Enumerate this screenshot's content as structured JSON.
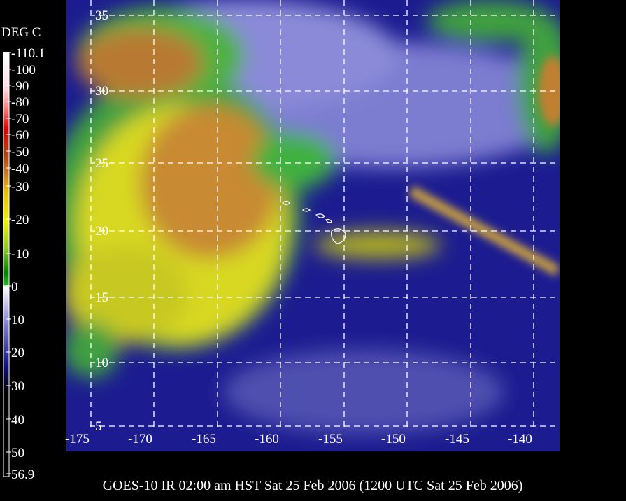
{
  "colorbar": {
    "unit": "DEG C",
    "labels": [
      "-110.1",
      "-100",
      "-90",
      "-80",
      "-70",
      "-60",
      "-50",
      "-40",
      "-30",
      "-20",
      "-10",
      "0",
      "10",
      "20",
      "30",
      "40",
      "50",
      "56.9"
    ]
  },
  "map": {
    "lon_labels": [
      "-175",
      "-170",
      "-165",
      "-160",
      "-155",
      "-150",
      "-145",
      "-140"
    ],
    "lat_labels": [
      "35",
      "30",
      "25",
      "20",
      "15",
      "10",
      "5"
    ]
  },
  "caption": "GOES-10 IR 02:00 am HST Sat 25 Feb 2006 (1200 UTC Sat 25 Feb 2006)"
}
